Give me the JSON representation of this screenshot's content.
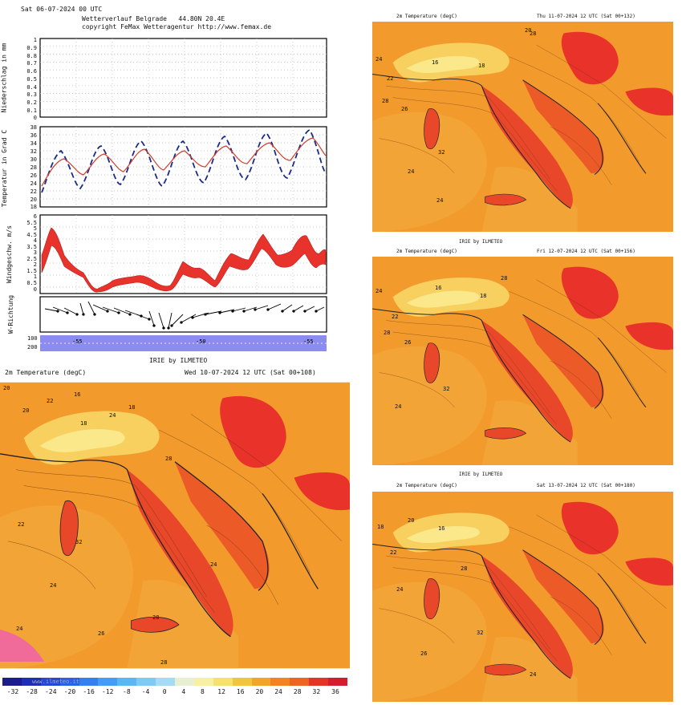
{
  "meteogram": {
    "header_line1": "Sat 06-07-2024 00 UTC",
    "header_line2": "Wetterverlauf Belgrade   44.80N 20.4E",
    "header_line3": "copyright FeMax Wetteragentur http://www.femax.de",
    "precip": {
      "ylabel": "Niederschlag in mm",
      "ticks": [
        "1",
        "0.9",
        "0.8",
        "0.7",
        "0.6",
        "0.5",
        "0.4",
        "0.3",
        "0.2",
        "0.1",
        "0"
      ]
    },
    "temp": {
      "ylabel": "Temperatur in Grad C",
      "ticks": [
        "38",
        "36",
        "34",
        "32",
        "30",
        "28",
        "26",
        "24",
        "22",
        "20",
        "18"
      ]
    },
    "wind": {
      "ylabel": "Windgeschw. m/s",
      "ticks": [
        "6",
        "5.5",
        "5",
        "4.5",
        "4",
        "3.5",
        "3",
        "2.5",
        "2",
        "1.5",
        "1",
        "0.5",
        "0"
      ]
    },
    "direction": {
      "ylabel": "W-Richtung"
    },
    "bottom": {
      "ticks": [
        "100",
        "200"
      ],
      "labels": [
        "-55",
        "-50",
        "-55"
      ]
    },
    "colors": {
      "temp_max": "#1a2a8a",
      "temp_mean": "#d23b2b",
      "wind": "#e8322c",
      "bottom_band": "#8c8cf0"
    }
  },
  "maps": [
    {
      "title": "IRIE by ILMETEO",
      "left": "2m Temperature (degC)",
      "right": "Wed 10-07-2024 12 UTC (Sat 00+108)",
      "labels": [
        "20",
        "22",
        "16",
        "18",
        "24",
        "28",
        "22",
        "32",
        "24",
        "28",
        "26",
        "24",
        "28",
        "24",
        "18",
        "20"
      ]
    },
    {
      "title": "",
      "left": "2m Temperature (degC)",
      "right": "Thu 11-07-2024 12 UTC (Sat 00+132)",
      "labels": [
        "24",
        "16",
        "18",
        "22",
        "20",
        "28",
        "26",
        "24",
        "32",
        "24",
        "28"
      ]
    },
    {
      "title": "IRIE by ILMETEO",
      "left": "2m Temperature (degC)",
      "right": "Fri 12-07-2024 12 UTC (Sat 00+156)",
      "labels": [
        "16",
        "24",
        "18",
        "22",
        "28",
        "26",
        "24",
        "32",
        "28"
      ]
    },
    {
      "title": "IRIE by ILMETEO",
      "left": "2m Temperature (degC)",
      "right": "Sat 13-07-2024 12 UTC (Sat 00+180)",
      "labels": [
        "18",
        "20",
        "16",
        "22",
        "24",
        "28",
        "26",
        "32",
        "24"
      ]
    }
  ],
  "colorbar": {
    "credit": "www.ilmeteo.it",
    "ticks": [
      "-32",
      "-28",
      "-24",
      "-20",
      "-16",
      "-12",
      "-8",
      "-4",
      "0",
      "4",
      "8",
      "12",
      "16",
      "20",
      "24",
      "28",
      "32",
      "36"
    ],
    "colors": [
      "#1c1c8c",
      "#1f2fb4",
      "#2447d4",
      "#2a62e6",
      "#3481ee",
      "#449df2",
      "#5ab6f4",
      "#7ccaf6",
      "#a4dcf6",
      "#e8f0d4",
      "#f6f0a0",
      "#f6e070",
      "#f4c440",
      "#f4a42c",
      "#f08424",
      "#ec6424",
      "#e43422",
      "#d41e2e"
    ]
  }
}
